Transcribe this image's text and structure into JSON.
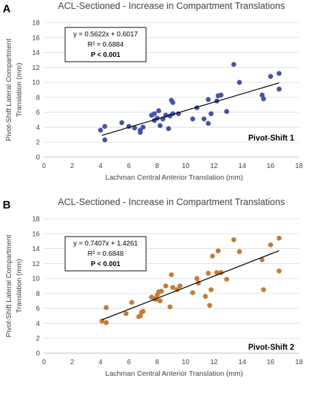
{
  "chart_data": [
    {
      "panel": "A",
      "type": "scatter",
      "title": "ACL-Sectioned - Increase in Compartment Translations",
      "xlabel": "Lachman Central Anterior Translation (mm)",
      "ylabel_lines": [
        "Pivot-Shift Lateral Compartment",
        "Translation (mm)"
      ],
      "xlim": [
        0,
        18
      ],
      "ylim": [
        0,
        18
      ],
      "xticks": [
        "0",
        "2",
        "4",
        "6",
        "8",
        "10",
        "12",
        "14",
        "16",
        "18"
      ],
      "yticks": [
        "0",
        "2",
        "4",
        "6",
        "8",
        "10",
        "12",
        "14",
        "16",
        "18"
      ],
      "grid": "horizontal",
      "marker_color": "#4454a8",
      "trendline": {
        "slope": 0.5622,
        "intercept": 0.6017,
        "x_range": [
          4.1,
          16.6
        ]
      },
      "equation_lines": [
        "y = 0.5622x + 0.6017",
        "R² = 0.6884",
        "P < 0.001"
      ],
      "series_label": "Pivot-Shift 1",
      "points": [
        [
          4.0,
          3.6
        ],
        [
          4.3,
          4.1
        ],
        [
          4.3,
          2.3
        ],
        [
          5.5,
          4.6
        ],
        [
          6.0,
          4.1
        ],
        [
          6.4,
          3.9
        ],
        [
          6.8,
          3.6
        ],
        [
          6.8,
          3.3
        ],
        [
          7.0,
          4.0
        ],
        [
          7.6,
          5.6
        ],
        [
          7.8,
          5.8
        ],
        [
          7.8,
          4.9
        ],
        [
          8.1,
          6.2
        ],
        [
          8.2,
          4.2
        ],
        [
          8.0,
          5.2
        ],
        [
          8.4,
          5.1
        ],
        [
          8.6,
          5.6
        ],
        [
          8.8,
          3.8
        ],
        [
          8.9,
          5.5
        ],
        [
          9.0,
          7.6
        ],
        [
          9.1,
          7.3
        ],
        [
          9.1,
          5.8
        ],
        [
          9.5,
          5.8
        ],
        [
          10.5,
          5.1
        ],
        [
          10.8,
          6.6
        ],
        [
          11.3,
          5.1
        ],
        [
          11.6,
          7.7
        ],
        [
          11.6,
          4.5
        ],
        [
          11.8,
          5.8
        ],
        [
          12.2,
          7.5
        ],
        [
          12.3,
          8.2
        ],
        [
          12.5,
          8.3
        ],
        [
          12.9,
          6.1
        ],
        [
          13.4,
          12.4
        ],
        [
          13.8,
          10.0
        ],
        [
          15.4,
          8.3
        ],
        [
          15.5,
          7.8
        ],
        [
          16.0,
          10.8
        ],
        [
          16.6,
          11.2
        ],
        [
          16.6,
          9.1
        ]
      ]
    },
    {
      "panel": "B",
      "type": "scatter",
      "title": "ACL-Sectioned - Increase in Compartment Translations",
      "xlabel": "Lachman Central Anterior Translation (mm)",
      "ylabel_lines": [
        "Pivot-Shift Lateral Compartment",
        "Translation (mm)"
      ],
      "xlim": [
        0,
        18
      ],
      "ylim": [
        0,
        18
      ],
      "xticks": [
        "0",
        "2",
        "4",
        "6",
        "8",
        "10",
        "12",
        "14",
        "16",
        "18"
      ],
      "yticks": [
        "0",
        "2",
        "4",
        "6",
        "8",
        "10",
        "12",
        "14",
        "16",
        "18"
      ],
      "grid": "horizontal",
      "marker_color": "#c87a32",
      "trendline": {
        "slope": 0.7407,
        "intercept": 1.4261,
        "x_range": [
          4.1,
          16.6
        ]
      },
      "equation_lines": [
        "y = 0.7407x + 1.4261",
        "R² = 0.6848",
        "P < 0.001"
      ],
      "series_label": "Pivot-Shift 2",
      "points": [
        [
          4.1,
          4.3
        ],
        [
          4.4,
          4.1
        ],
        [
          4.4,
          6.1
        ],
        [
          5.8,
          5.3
        ],
        [
          6.2,
          6.8
        ],
        [
          6.7,
          4.9
        ],
        [
          6.8,
          5.0
        ],
        [
          6.9,
          5.5
        ],
        [
          7.0,
          5.6
        ],
        [
          7.6,
          7.5
        ],
        [
          7.8,
          7.3
        ],
        [
          7.9,
          7.2
        ],
        [
          8.0,
          7.8
        ],
        [
          8.1,
          8.2
        ],
        [
          8.3,
          8.3
        ],
        [
          8.2,
          7.0
        ],
        [
          8.6,
          9.0
        ],
        [
          8.9,
          6.2
        ],
        [
          9.0,
          10.5
        ],
        [
          9.1,
          8.8
        ],
        [
          9.4,
          8.5
        ],
        [
          9.6,
          9.0
        ],
        [
          10.5,
          8.1
        ],
        [
          10.8,
          10.0
        ],
        [
          10.9,
          9.4
        ],
        [
          11.4,
          7.6
        ],
        [
          11.6,
          10.7
        ],
        [
          11.7,
          6.4
        ],
        [
          11.8,
          8.5
        ],
        [
          11.9,
          13.0
        ],
        [
          12.2,
          10.8
        ],
        [
          12.3,
          13.7
        ],
        [
          12.5,
          10.8
        ],
        [
          12.9,
          9.9
        ],
        [
          13.4,
          15.2
        ],
        [
          13.8,
          13.6
        ],
        [
          15.4,
          12.5
        ],
        [
          15.5,
          8.5
        ],
        [
          16.0,
          14.5
        ],
        [
          16.6,
          15.4
        ],
        [
          16.6,
          11.0
        ]
      ]
    }
  ]
}
